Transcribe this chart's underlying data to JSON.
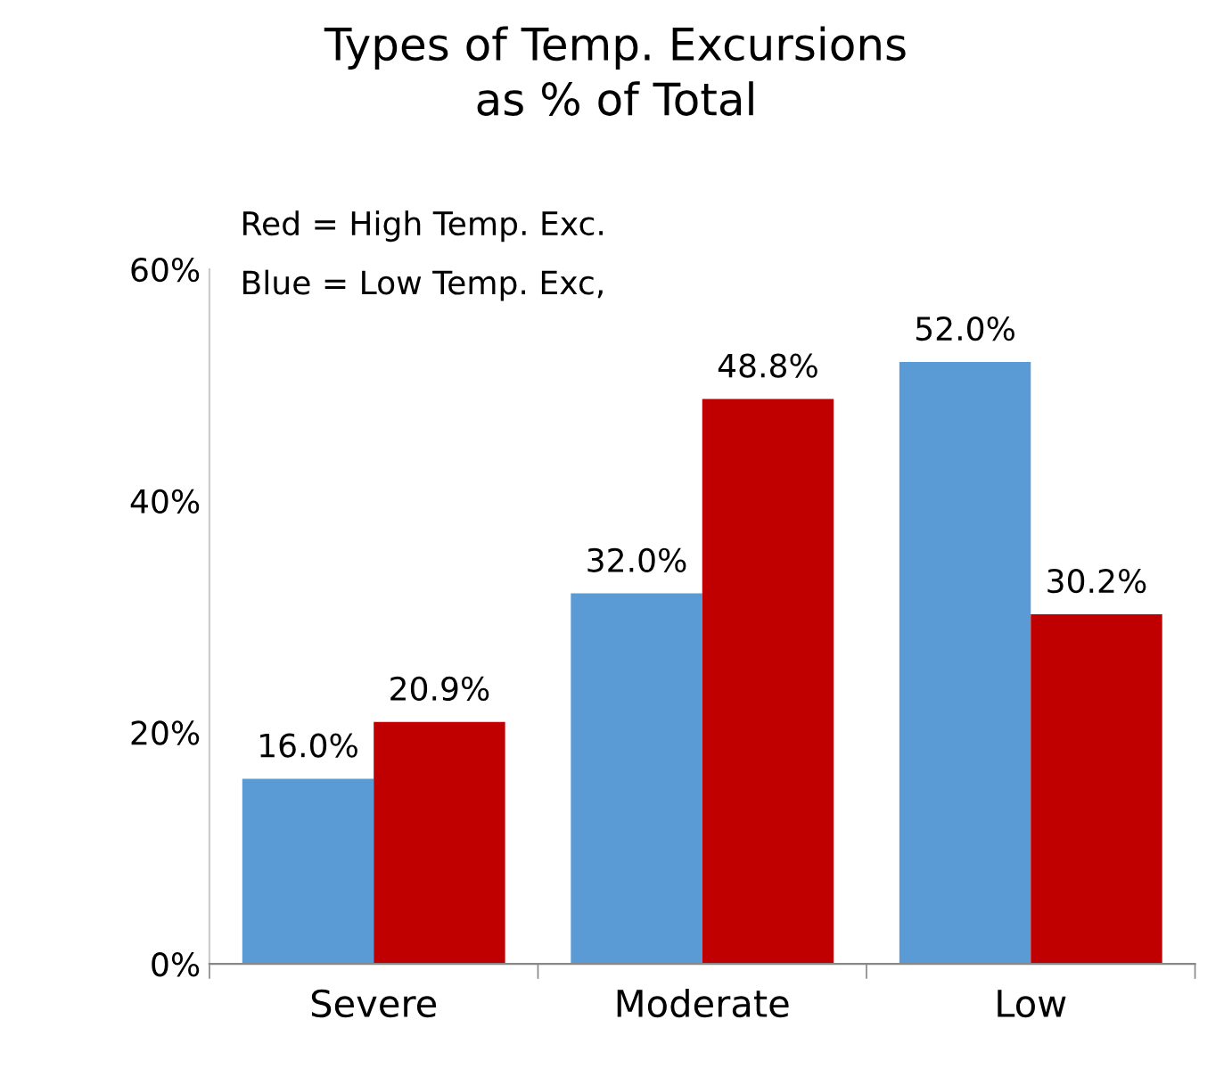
{
  "chart_data": {
    "type": "bar",
    "title": "Types of Temp. Excursions\nas % of Total",
    "categories": [
      "Severe",
      "Moderate",
      "Low"
    ],
    "series": [
      {
        "color": "#5b9bd5",
        "values": [
          16.0,
          32.0,
          52.0
        ],
        "value_labels": [
          "16.0%",
          "32.0%",
          "52.0%"
        ]
      },
      {
        "color": "#c00000",
        "values": [
          20.9,
          48.8,
          30.2
        ],
        "value_labels": [
          "20.9%",
          "48.8%",
          "30.2%"
        ]
      }
    ],
    "ylim": [
      0,
      60
    ],
    "yticks": [
      {
        "value": 0,
        "label": "0%"
      },
      {
        "value": 20,
        "label": "20%"
      },
      {
        "value": 40,
        "label": "40%"
      },
      {
        "value": 60,
        "label": "60%"
      }
    ],
    "annotations": [
      "Red = High Temp. Exc.",
      "Blue = Low Temp. Exc,"
    ],
    "grid": false,
    "legend": false
  }
}
